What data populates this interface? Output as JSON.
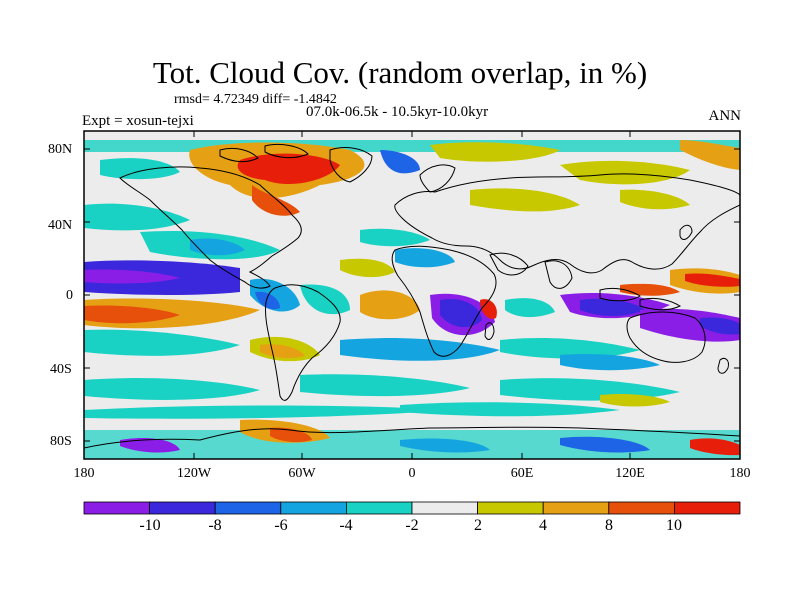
{
  "title": "Tot. Cloud Cov. (random overlap, in %)",
  "stats": "rmsd= 4.72349 diff= -1.4842",
  "period": "07.0k-06.5k - 10.5kyr-10.0kyr",
  "experiment": "Expt = xosun-tejxi",
  "season": "ANN",
  "lat_labels": [
    "80N",
    "40N",
    "0",
    "40S",
    "80S"
  ],
  "lon_labels": [
    "180",
    "120W",
    "60W",
    "0",
    "60E",
    "120E",
    "180"
  ],
  "colorbar": {
    "labels": [
      "-10",
      "-8",
      "-6",
      "-4",
      "-2",
      "2",
      "4",
      "8",
      "10"
    ],
    "colors": [
      "#8a1ee6",
      "#3c28dc",
      "#1e64e6",
      "#14a5e1",
      "#19d2c3",
      "#ececec",
      "#c8c800",
      "#e6a014",
      "#e6500a",
      "#e61e0a"
    ]
  },
  "map_fill": "#ececec"
}
